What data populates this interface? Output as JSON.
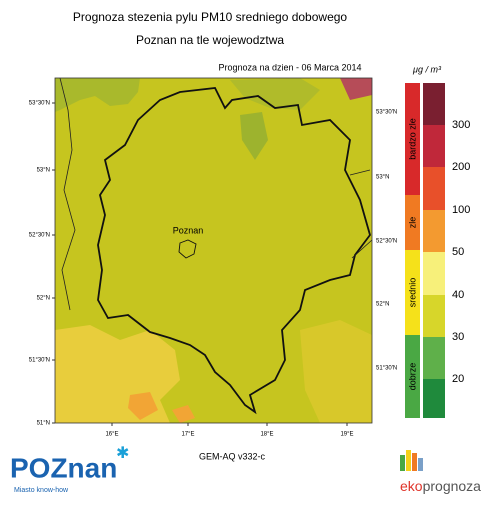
{
  "header": {
    "title": "Prognoza stezenia pylu PM10 sredniego dobowego",
    "subtitle": "Poznan na tle wojewodztwa",
    "forecast_date": "Prognoza na dzien -  06 Marca 2014"
  },
  "map": {
    "lat_left": [
      "53°30'N",
      "53°N",
      "52°30'N",
      "52°N",
      "51°30'N",
      "51°N"
    ],
    "lat_right": [
      "53°30'N",
      "53°N",
      "52°30'N",
      "52°N",
      "51°30'N"
    ],
    "lon": [
      "16°E",
      "17°E",
      "18°E",
      "19°E"
    ],
    "city_label": "Poznan"
  },
  "legend": {
    "unit": "μg / m³",
    "categories": [
      "bardzo zle",
      "zle",
      "srednio",
      "dobrze"
    ],
    "ticks": [
      300,
      200,
      100,
      50,
      40,
      30,
      20
    ]
  },
  "footer": {
    "model": "GEM-AQ v332-c",
    "logo_left": "POZnan",
    "logo_left_tagline": "Miasto know-how",
    "logo_right_prefix": "eko",
    "logo_right_suffix": "prognoza"
  }
}
